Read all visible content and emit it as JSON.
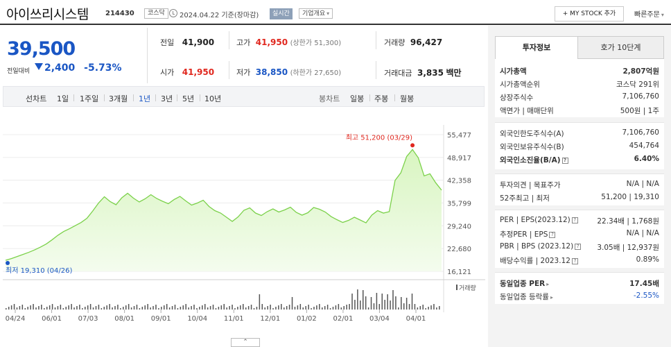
{
  "header": {
    "title": "아이쓰리시스템",
    "code": "214430",
    "market_tag": "코스닥",
    "date_text": "2024.04.22  기준(장마감)",
    "realtime_tag": "실시간",
    "company_dropdown": "기업개요",
    "mystock_button": "+ MY STOCK 추가",
    "quick_order": "빠른주문"
  },
  "price": {
    "current": "39,500",
    "change_label": "전일대비",
    "change_value": "2,400",
    "change_pct": "-5.73%"
  },
  "summary": {
    "prev_close_label": "전일",
    "prev_close": "41,900",
    "high_label": "고가",
    "high": "41,950",
    "upper_limit": "(상한가 51,300)",
    "volume_label": "거래량",
    "volume": "96,427",
    "open_label": "시가",
    "open": "41,950",
    "low_label": "저가",
    "low": "38,850",
    "lower_limit": "(하한가 27,650)",
    "amount_label": "거래대금",
    "amount": "3,835",
    "amount_unit": "백만"
  },
  "periods": {
    "line_label": "선차트",
    "items": [
      "1일",
      "1주일",
      "3개월",
      "1년",
      "3년",
      "5년",
      "10년"
    ],
    "selected": "1년",
    "candle_label": "봉차트",
    "candle_items": [
      "일봉",
      "주봉",
      "월봉"
    ]
  },
  "chart_data": {
    "type": "area",
    "x_ticks": [
      "04/24",
      "06/01",
      "07/03",
      "08/01",
      "09/01",
      "10/04",
      "11/01",
      "12/01",
      "01/02",
      "02/01",
      "03/04",
      "04/01"
    ],
    "y_ticks": [
      "55,477",
      "48,917",
      "42,358",
      "35,799",
      "29,240",
      "22,680",
      "16,121"
    ],
    "ylim": [
      16121,
      55477
    ],
    "max_annotation": "최고 51,200 (03/29)",
    "min_annotation": "최저 19,310 (04/26)",
    "volume_label": "거래량",
    "series": [
      {
        "values": [
          19310,
          19800,
          20400,
          21000,
          21600,
          22300,
          23100,
          24000,
          25200,
          26500,
          27600,
          28400,
          29300,
          30200,
          31400,
          33500,
          35800,
          37600,
          36200,
          35300,
          37300,
          38600,
          37200,
          36100,
          37000,
          38200,
          37100,
          36300,
          35600,
          36800,
          37700,
          36400,
          35200,
          35800,
          36600,
          34800,
          33600,
          32900,
          31700,
          30500,
          31800,
          33700,
          34400,
          32900,
          32200,
          33300,
          34100,
          33200,
          33800,
          34600,
          33100,
          32300,
          33000,
          34500,
          34000,
          33200,
          31900,
          31000,
          30200,
          30800,
          31700,
          30900,
          30100,
          32300,
          33600,
          32900,
          33300,
          42300,
          44500,
          49200,
          51200,
          48800,
          43600,
          44200,
          41600,
          39500
        ]
      }
    ]
  },
  "right_panel": {
    "tab_invest": "투자정보",
    "tab_quote": "호가 10단계",
    "market_cap_label": "시가총액",
    "market_cap": "2,807억원",
    "cap_rank_label": "시가총액순위",
    "cap_rank": "코스닥 291위",
    "shares_label": "상장주식수",
    "shares": "7,106,760",
    "par_label": "액면가 | 매매단위",
    "par": "500원 | 1주",
    "foreign_limit_label": "외국인한도주식수(A)",
    "foreign_limit": "7,106,760",
    "foreign_hold_label": "외국인보유주식수(B)",
    "foreign_hold": "454,764",
    "foreign_rate_label": "외국인소진율(B/A)",
    "foreign_rate": "6.40%",
    "opinion_label": "투자의견 | 목표주가",
    "opinion": "N/A | N/A",
    "week52_label": "52주최고 | 최저",
    "week52": "51,200 | 19,310",
    "per_label": "PER | EPS(2023.12)",
    "per": "22.34배 | 1,768원",
    "est_per_label": "추정PER | EPS",
    "est_per": "N/A | N/A",
    "pbr_label": "PBR | BPS (2023.12)",
    "pbr": "3.05배 | 12,937원",
    "div_label": "배당수익률 | 2023.12",
    "div": "0.89%",
    "sector_per_label": "동일업종 PER",
    "sector_per": "17.45배",
    "sector_rate_label": "동일업종 등락률",
    "sector_rate": "-2.55%"
  },
  "colors": {
    "down": "#1a56c4",
    "up": "#e0271e",
    "area_line": "#7bd14a",
    "area_fill": "#d8f5c0"
  }
}
